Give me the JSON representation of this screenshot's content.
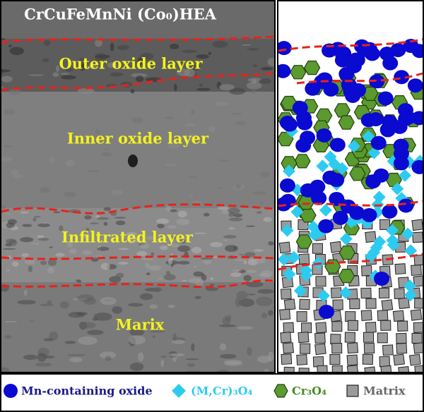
{
  "figure": {
    "title": "CrCuFeMnNi (Co₀)HEA",
    "labels": [
      "Outer oxide layer",
      "Inner oxide layer",
      "Infiltrated layer",
      "Marix"
    ]
  },
  "legend": [
    "Mn-containing oxide",
    "(M,Cr)₃O₄",
    "Cr₃O₄",
    "Matrix"
  ]
}
